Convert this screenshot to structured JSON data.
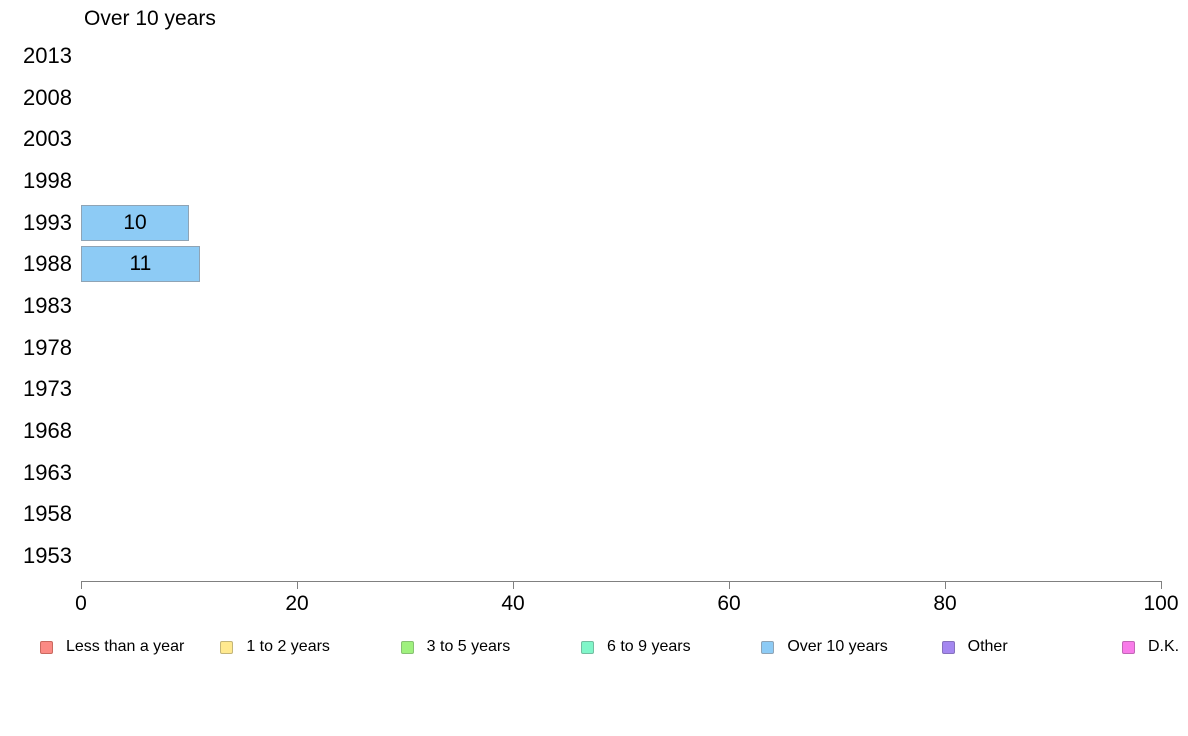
{
  "chart_data": {
    "type": "bar",
    "orientation": "horizontal",
    "panel_title": "Over 10 years",
    "categories": [
      "2013",
      "2008",
      "2003",
      "1998",
      "1993",
      "1988",
      "1983",
      "1978",
      "1973",
      "1968",
      "1963",
      "1958",
      "1953"
    ],
    "series": [
      {
        "name": "Over 10 years",
        "values": [
          null,
          null,
          null,
          null,
          10,
          11,
          null,
          null,
          null,
          null,
          null,
          null,
          null
        ],
        "fill": "#8dcbf5",
        "border": "#8fa4b5"
      }
    ],
    "bar_value_labels": true,
    "xlabel": "",
    "ylabel": "",
    "xlim": [
      0,
      100
    ],
    "xticks": [
      0,
      20,
      40,
      60,
      80,
      100
    ],
    "grid": false,
    "axis_color": "#808080",
    "text_color": "#000000",
    "legend_position": "bottom",
    "legend": [
      {
        "label": "Less than a year",
        "fill": "#fb8a84",
        "border": "#c9695f"
      },
      {
        "label": "1 to 2 years",
        "fill": "#ffe98f",
        "border": "#c3b579"
      },
      {
        "label": "3 to 5 years",
        "fill": "#9ff17e",
        "border": "#88c173"
      },
      {
        "label": "6 to 9 years",
        "fill": "#80f6c9",
        "border": "#74bda1"
      },
      {
        "label": "Over 10 years",
        "fill": "#8dcbf5",
        "border": "#8fa4b5"
      },
      {
        "label": "Other",
        "fill": "#a487f0",
        "border": "#8672bd"
      },
      {
        "label": "D.K.",
        "fill": "#f87be9",
        "border": "#c167b6"
      }
    ]
  }
}
